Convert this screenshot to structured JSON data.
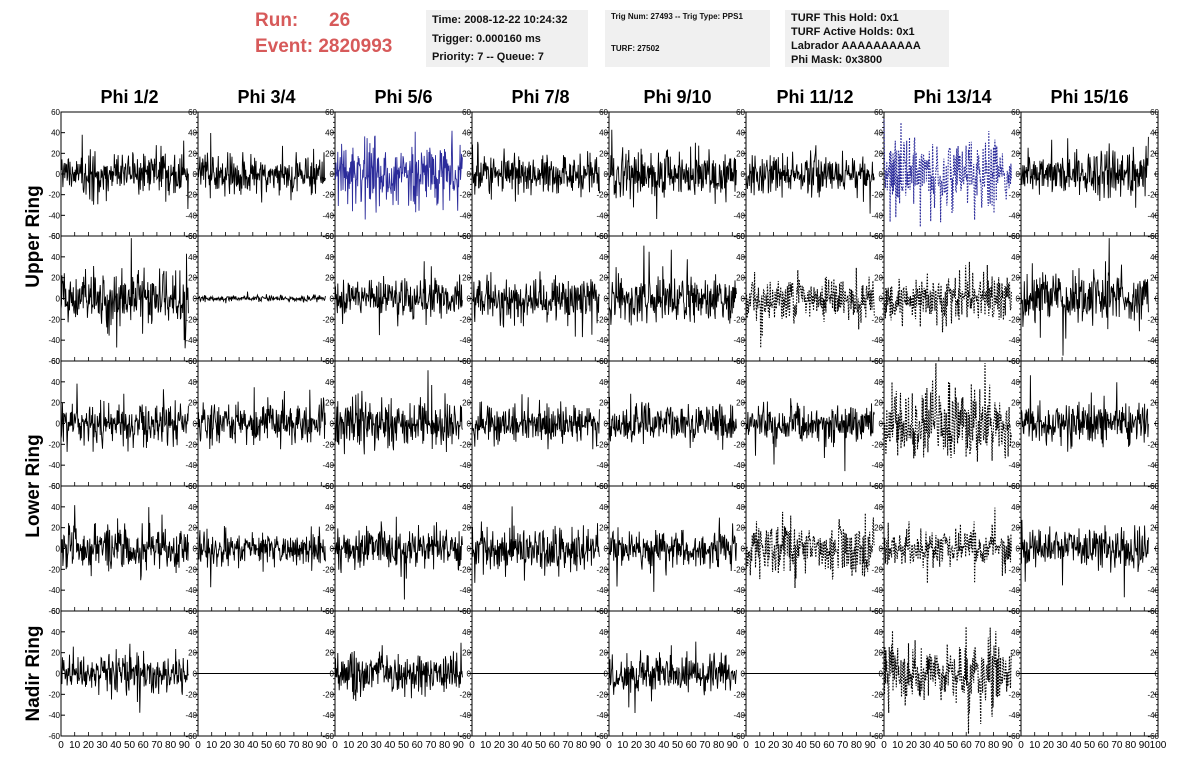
{
  "header": {
    "run_label": "Run:",
    "run_value": "26",
    "event_label": "Event:",
    "event_value": "2820993",
    "time_line": "Time: 2008-12-22 10:24:32",
    "trigger_line": "Trigger: 0.000160 ms",
    "priority_line": "Priority: 7 -- Queue: 7",
    "trig_line": "Trig Num: 27493 -- Trig Type: PPS1",
    "turf_line": "TURF: 27502",
    "turf_hold": "TURF This Hold: 0x1",
    "turf_active": "TURF Active Holds: 0x1",
    "labrador": "Labrador AAAAAAAAAA",
    "phi_mask": "Phi Mask: 0x3800"
  },
  "chart_data": {
    "type": "line",
    "columns": [
      "Phi 1/2",
      "Phi 3/4",
      "Phi 5/6",
      "Phi 7/8",
      "Phi 9/10",
      "Phi 11/12",
      "Phi 13/14",
      "Phi 15/16"
    ],
    "ring_labels": [
      "Upper Ring",
      "Lower Ring",
      "Nadir Ring"
    ],
    "ylim": [
      -60,
      60
    ],
    "xlim": [
      0,
      100
    ],
    "yticks": [
      "60",
      "40",
      "20",
      "0",
      "-20",
      "-40",
      "-60"
    ],
    "xticks": [
      "0",
      "10",
      "20",
      "30",
      "40",
      "50",
      "60",
      "70",
      "80",
      "90",
      "100"
    ],
    "grid": false,
    "colors": {
      "normal": "#000000",
      "highlight": "#2b2b9a"
    },
    "panels": [
      [
        {
          "amp": 14,
          "style": "solid"
        },
        {
          "amp": 13,
          "style": "solid"
        },
        {
          "amp": 20,
          "style": "solid",
          "color": "highlight"
        },
        {
          "amp": 14,
          "style": "solid"
        },
        {
          "amp": 15,
          "style": "solid"
        },
        {
          "amp": 12,
          "style": "solid"
        },
        {
          "amp": 22,
          "style": "dotted",
          "color": "highlight"
        },
        {
          "amp": 15,
          "style": "solid"
        }
      ],
      [
        {
          "amp": 18,
          "style": "solid"
        },
        {
          "amp": 2,
          "style": "solid"
        },
        {
          "amp": 12,
          "style": "solid"
        },
        {
          "amp": 14,
          "style": "solid"
        },
        {
          "amp": 15,
          "style": "solid"
        },
        {
          "amp": 14,
          "style": "dotted"
        },
        {
          "amp": 14,
          "style": "dotted"
        },
        {
          "amp": 17,
          "style": "solid"
        }
      ],
      [
        {
          "amp": 13,
          "style": "solid"
        },
        {
          "amp": 14,
          "style": "solid"
        },
        {
          "amp": 16,
          "style": "solid"
        },
        {
          "amp": 12,
          "style": "solid"
        },
        {
          "amp": 13,
          "style": "solid"
        },
        {
          "amp": 13,
          "style": "solid"
        },
        {
          "amp": 22,
          "style": "dotted"
        },
        {
          "amp": 14,
          "style": "solid"
        }
      ],
      [
        {
          "amp": 14,
          "style": "solid"
        },
        {
          "amp": 11,
          "style": "solid"
        },
        {
          "amp": 13,
          "style": "solid"
        },
        {
          "amp": 14,
          "style": "solid"
        },
        {
          "amp": 12,
          "style": "solid"
        },
        {
          "amp": 16,
          "style": "dotted"
        },
        {
          "amp": 13,
          "style": "dotted"
        },
        {
          "amp": 13,
          "style": "solid"
        }
      ],
      [
        {
          "amp": 13,
          "style": "solid"
        },
        {
          "amp": 0,
          "style": "solid"
        },
        {
          "amp": 12,
          "style": "solid"
        },
        {
          "amp": 0,
          "style": "solid"
        },
        {
          "amp": 12,
          "style": "solid"
        },
        {
          "amp": 0,
          "style": "solid"
        },
        {
          "amp": 20,
          "style": "dotted"
        },
        {
          "amp": 0,
          "style": "solid"
        }
      ]
    ]
  }
}
